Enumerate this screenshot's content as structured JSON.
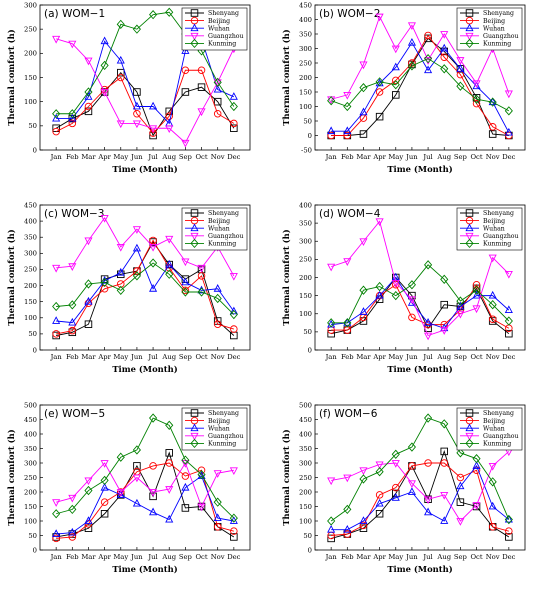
{
  "colors": {
    "Shenyang": "#000000",
    "Beijing": "#ff0000",
    "Wuhan": "#0000ff",
    "Guangzhou": "#ff00ff",
    "Kunming": "#008000"
  },
  "markers": {
    "Shenyang": "square",
    "Beijing": "circle",
    "Wuhan": "triangle-up",
    "Guangzhou": "triangle-down",
    "Kunming": "diamond"
  },
  "chart_data": [
    {
      "type": "line",
      "title": "(a) WOM−1",
      "xlabel": "Time (Month)",
      "ylabel": "Thermal comfort (h)",
      "categories": [
        "Jan",
        "Feb",
        "Mar",
        "Apr",
        "May",
        "Jun",
        "Jul",
        "Aug",
        "Sep",
        "Oct",
        "Nov",
        "Dec"
      ],
      "ylim": [
        0,
        300
      ],
      "yticks": [
        0,
        50,
        100,
        150,
        200,
        250,
        300
      ],
      "legend": "top-right",
      "series": [
        {
          "name": "Shenyang",
          "values": [
            45,
            65,
            80,
            120,
            160,
            120,
            30,
            80,
            120,
            130,
            100,
            45
          ]
        },
        {
          "name": "Beijing",
          "values": [
            38,
            55,
            90,
            125,
            150,
            75,
            35,
            70,
            165,
            165,
            75,
            55
          ]
        },
        {
          "name": "Wuhan",
          "values": [
            65,
            65,
            110,
            225,
            185,
            90,
            90,
            55,
            205,
            230,
            125,
            110
          ]
        },
        {
          "name": "Guangzhou",
          "values": [
            230,
            220,
            185,
            120,
            55,
            55,
            45,
            45,
            15,
            80,
            140,
            210
          ]
        },
        {
          "name": "Kunming",
          "values": [
            75,
            75,
            120,
            175,
            260,
            250,
            280,
            285,
            240,
            205,
            140,
            90
          ]
        }
      ]
    },
    {
      "type": "line",
      "title": "(b) WOM−2",
      "xlabel": "Time (Month)",
      "ylabel": "Thermal comfort (h)",
      "categories": [
        "Jan",
        "Feb",
        "Mar",
        "Apr",
        "May",
        "Jun",
        "Jul",
        "Aug",
        "Sep",
        "Oct",
        "Nov",
        "Dec"
      ],
      "ylim": [
        -50,
        450
      ],
      "yticks": [
        -50,
        0,
        50,
        100,
        150,
        200,
        250,
        300,
        350,
        400,
        450
      ],
      "legend": "top-right",
      "series": [
        {
          "name": "Shenyang",
          "values": [
            0,
            0,
            5,
            65,
            140,
            245,
            335,
            290,
            230,
            130,
            5,
            0
          ]
        },
        {
          "name": "Beijing",
          "values": [
            0,
            0,
            60,
            150,
            190,
            250,
            345,
            270,
            210,
            110,
            30,
            0
          ]
        },
        {
          "name": "Wuhan",
          "values": [
            15,
            15,
            80,
            180,
            235,
            320,
            225,
            300,
            230,
            170,
            115,
            10
          ]
        },
        {
          "name": "Guangzhou",
          "values": [
            125,
            140,
            245,
            410,
            300,
            380,
            260,
            350,
            260,
            180,
            300,
            145
          ]
        },
        {
          "name": "Kunming",
          "values": [
            120,
            100,
            165,
            185,
            175,
            240,
            265,
            230,
            170,
            125,
            115,
            85
          ]
        }
      ]
    },
    {
      "type": "line",
      "title": "(c) WOM−3",
      "xlabel": "Time (Month)",
      "ylabel": "Thermal comfort (h)",
      "categories": [
        "Jan",
        "Feb",
        "Mar",
        "Apr",
        "May",
        "Jun",
        "Jul",
        "Aug",
        "Sep",
        "Oct",
        "Nov",
        "Dec"
      ],
      "ylim": [
        0,
        450
      ],
      "yticks": [
        0,
        50,
        100,
        150,
        200,
        250,
        300,
        350,
        400,
        450
      ],
      "legend": "top-right",
      "series": [
        {
          "name": "Shenyang",
          "values": [
            45,
            55,
            80,
            220,
            235,
            245,
            335,
            265,
            220,
            250,
            90,
            45
          ]
        },
        {
          "name": "Beijing",
          "values": [
            50,
            60,
            145,
            190,
            205,
            245,
            340,
            255,
            185,
            230,
            80,
            65
          ]
        },
        {
          "name": "Wuhan",
          "values": [
            90,
            85,
            150,
            215,
            240,
            315,
            190,
            265,
            210,
            185,
            190,
            120
          ]
        },
        {
          "name": "Guangzhou",
          "values": [
            255,
            260,
            340,
            410,
            320,
            375,
            320,
            345,
            275,
            255,
            320,
            230
          ]
        },
        {
          "name": "Kunming",
          "values": [
            135,
            140,
            205,
            210,
            185,
            230,
            270,
            235,
            180,
            180,
            160,
            110
          ]
        }
      ]
    },
    {
      "type": "line",
      "title": "(d) WOM−4",
      "xlabel": "Time (Month)",
      "ylabel": "Thermal comfort (h)",
      "categories": [
        "Jan",
        "Feb",
        "Mar",
        "Apr",
        "May",
        "Jun",
        "Jul",
        "Aug",
        "Sep",
        "Oct",
        "Nov",
        "Dec"
      ],
      "ylim": [
        0,
        400
      ],
      "yticks": [
        0,
        50,
        100,
        150,
        200,
        250,
        300,
        350,
        400
      ],
      "legend": "top-right",
      "series": [
        {
          "name": "Shenyang",
          "values": [
            45,
            55,
            80,
            140,
            200,
            150,
            60,
            125,
            120,
            170,
            80,
            45
          ]
        },
        {
          "name": "Beijing",
          "values": [
            55,
            55,
            90,
            150,
            180,
            90,
            70,
            70,
            110,
            180,
            85,
            60
          ]
        },
        {
          "name": "Wuhan",
          "values": [
            70,
            75,
            105,
            150,
            200,
            130,
            75,
            60,
            120,
            150,
            150,
            110
          ]
        },
        {
          "name": "Guangzhou",
          "values": [
            230,
            245,
            300,
            355,
            185,
            140,
            40,
            55,
            100,
            115,
            255,
            210
          ]
        },
        {
          "name": "Kunming",
          "values": [
            75,
            75,
            165,
            175,
            150,
            180,
            235,
            195,
            135,
            165,
            125,
            80
          ]
        }
      ]
    },
    {
      "type": "line",
      "title": "(e) WOM−5",
      "xlabel": "Time (Month)",
      "ylabel": "Thermal comfort (h)",
      "categories": [
        "Jan",
        "Feb",
        "Mar",
        "Apr",
        "May",
        "Jun",
        "Jul",
        "Aug",
        "Sep",
        "Oct",
        "Nov",
        "Dec"
      ],
      "ylim": [
        0,
        500
      ],
      "yticks": [
        0,
        50,
        100,
        150,
        200,
        250,
        300,
        350,
        400,
        450,
        500
      ],
      "legend": "top-right",
      "series": [
        {
          "name": "Shenyang",
          "values": [
            45,
            55,
            75,
            125,
            190,
            290,
            185,
            335,
            145,
            150,
            80,
            45
          ]
        },
        {
          "name": "Beijing",
          "values": [
            40,
            45,
            90,
            165,
            200,
            270,
            290,
            300,
            255,
            275,
            80,
            65
          ]
        },
        {
          "name": "Wuhan",
          "values": [
            55,
            60,
            100,
            215,
            190,
            160,
            130,
            105,
            215,
            255,
            110,
            100
          ]
        },
        {
          "name": "Guangzhou",
          "values": [
            165,
            180,
            240,
            300,
            200,
            250,
            200,
            210,
            300,
            150,
            265,
            275
          ]
        },
        {
          "name": "Kunming",
          "values": [
            125,
            140,
            205,
            240,
            320,
            345,
            455,
            430,
            310,
            260,
            165,
            110
          ]
        }
      ]
    },
    {
      "type": "line",
      "title": "(f) WOM−6",
      "xlabel": "Time (Month)",
      "ylabel": "Thermal comfort (h)",
      "categories": [
        "Jan",
        "Feb",
        "Mar",
        "Apr",
        "May",
        "Jun",
        "Jul",
        "Aug",
        "Sep",
        "Oct",
        "Nov",
        "Dec"
      ],
      "ylim": [
        0,
        500
      ],
      "yticks": [
        0,
        50,
        100,
        150,
        200,
        250,
        300,
        350,
        400,
        450,
        500
      ],
      "legend": "top-right",
      "series": [
        {
          "name": "Shenyang",
          "values": [
            40,
            55,
            75,
            125,
            195,
            290,
            175,
            340,
            165,
            150,
            80,
            45
          ]
        },
        {
          "name": "Beijing",
          "values": [
            50,
            55,
            85,
            190,
            215,
            290,
            300,
            300,
            250,
            275,
            80,
            65
          ]
        },
        {
          "name": "Wuhan",
          "values": [
            70,
            70,
            100,
            160,
            180,
            200,
            130,
            100,
            220,
            290,
            150,
            105
          ]
        },
        {
          "name": "Guangzhou",
          "values": [
            240,
            250,
            275,
            295,
            300,
            230,
            175,
            190,
            100,
            155,
            290,
            340
          ]
        },
        {
          "name": "Kunming",
          "values": [
            100,
            140,
            245,
            270,
            330,
            355,
            455,
            435,
            335,
            315,
            235,
            105
          ]
        }
      ]
    }
  ]
}
